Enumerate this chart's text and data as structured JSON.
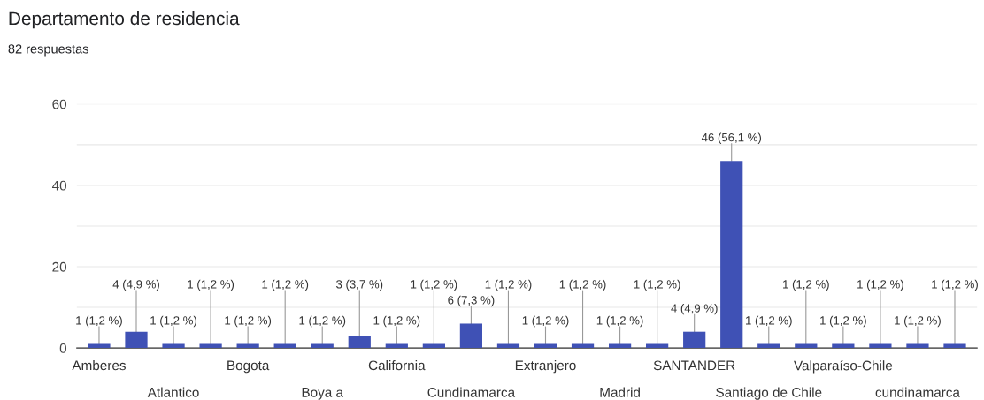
{
  "chart_data": {
    "type": "bar",
    "title": "Departamento de residencia",
    "subtitle": "82 respuestas",
    "categories": [
      "Amberes",
      null,
      "Atlantico",
      null,
      "Bogota",
      null,
      "Boya a",
      null,
      "California",
      null,
      "Cundinamarca",
      null,
      "Extranjero",
      null,
      "Madrid",
      null,
      "SANTANDER",
      null,
      "Santiago de Chile",
      null,
      "Valparaíso-Chile",
      null,
      "cundinamarca",
      null
    ],
    "values": [
      1,
      4,
      1,
      1,
      1,
      1,
      1,
      3,
      1,
      1,
      6,
      1,
      1,
      1,
      1,
      1,
      4,
      46,
      1,
      1,
      1,
      1,
      1,
      1
    ],
    "value_labels": [
      "1 (1,2 %)",
      "4 (4,9 %)",
      "1 (1,2 %)",
      "1 (1,2 %)",
      "1 (1,2 %)",
      "1 (1,2 %)",
      "1 (1,2 %)",
      "3 (3,7 %)",
      "1 (1,2 %)",
      "1 (1,2 %)",
      "6 (7,3 %)",
      "1 (1,2 %)",
      "1 (1,2 %)",
      "1 (1,2 %)",
      "1 (1,2 %)",
      "1 (1,2 %)",
      "4 (4,9 %)",
      "46 (56,1 %)",
      "1 (1,2 %)",
      "1 (1,2 %)",
      "1 (1,2 %)",
      "1 (1,2 %)",
      "1 (1,2 %)",
      "1 (1,2 %)"
    ],
    "color": "#3f51b5",
    "ylim": [
      0,
      60
    ],
    "yticks": [
      0,
      {
        "value": 10,
        "label": null
      },
      20,
      {
        "value": 30,
        "label": null
      },
      40,
      {
        "value": 50,
        "label": null
      },
      60
    ],
    "grid": "y"
  }
}
